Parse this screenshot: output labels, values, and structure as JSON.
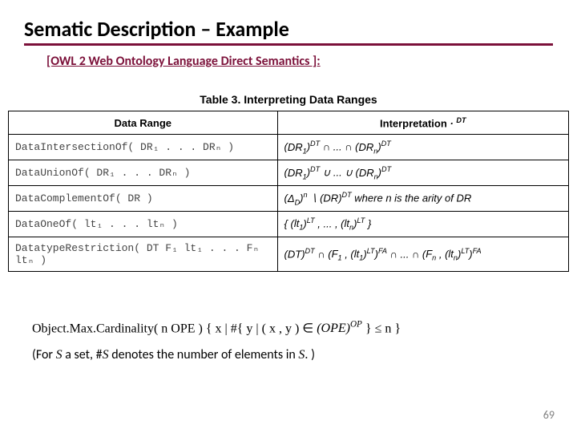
{
  "title": "Sematic Description – Example",
  "subtitle": "[OWL 2 Web Ontology Language Direct Semantics ]:",
  "table": {
    "caption": "Table 3. Interpreting Data Ranges",
    "headers": {
      "range": "Data Range",
      "interp_prefix": "Interpretation",
      "interp_dot": " · ",
      "interp_sup": "DT"
    },
    "rows": [
      {
        "range": "DataIntersectionOf( DR₁ . . . DRₙ )",
        "interp_html": "(<i>DR<sub>1</sub></i>)<sup>DT</sup> ∩ ... ∩ (<i>DR<sub>n</sub></i>)<sup>DT</sup>"
      },
      {
        "range": "DataUnionOf( DR₁ . . . DRₙ )",
        "interp_html": "(<i>DR<sub>1</sub></i>)<sup>DT</sup> ∪ ... ∪ (<i>DR<sub>n</sub></i>)<sup>DT</sup>"
      },
      {
        "range": "DataComplementOf( DR )",
        "interp_html": "(<i>Δ<sub>D</sub></i>)<sup>n</sup> ∖ (<i>DR</i>)<sup>DT</sup> where <i>n</i> is the arity of <i>DR</i>"
      },
      {
        "range": "DataOneOf( lt₁ . . . ltₙ )",
        "interp_html": "{ (<i>lt<sub>1</sub></i>)<sup>LT</sup> , ... , (<i>lt<sub>n</sub></i>)<sup>LT</sup> }"
      },
      {
        "range": "DatatypeRestriction( DT F₁ lt₁ . . . Fₙ ltₙ )",
        "interp_html": "(<i>DT</i>)<sup>DT</sup> ∩ (<i>F<sub>1</sub></i> , (<i>lt<sub>1</sub></i>)<sup>LT</sup>)<sup>FA</sup> ∩ ... ∩ (<i>F<sub>n</sub></i> , (<i>lt<sub>n</sub></i>)<sup>LT</sup>)<sup>FA</sup>"
      }
    ]
  },
  "cardinality_html": "Object.Max.Cardinality( n OPE ) { x | #{ y | ( x , y ) ∈ <i>(OPE)<sup>OP</sup></i> } ≤ n }",
  "note_prefix": "(For ",
  "note_S": "S",
  "note_mid": " a set, #",
  "note_S2": "S",
  "note_mid2": " denotes the number of elements in ",
  "note_S3": "S",
  "note_end": ". )",
  "pagenum": "69",
  "colors": {
    "accent": "#7b1039",
    "text": "#000000",
    "pagenum": "#808080"
  }
}
